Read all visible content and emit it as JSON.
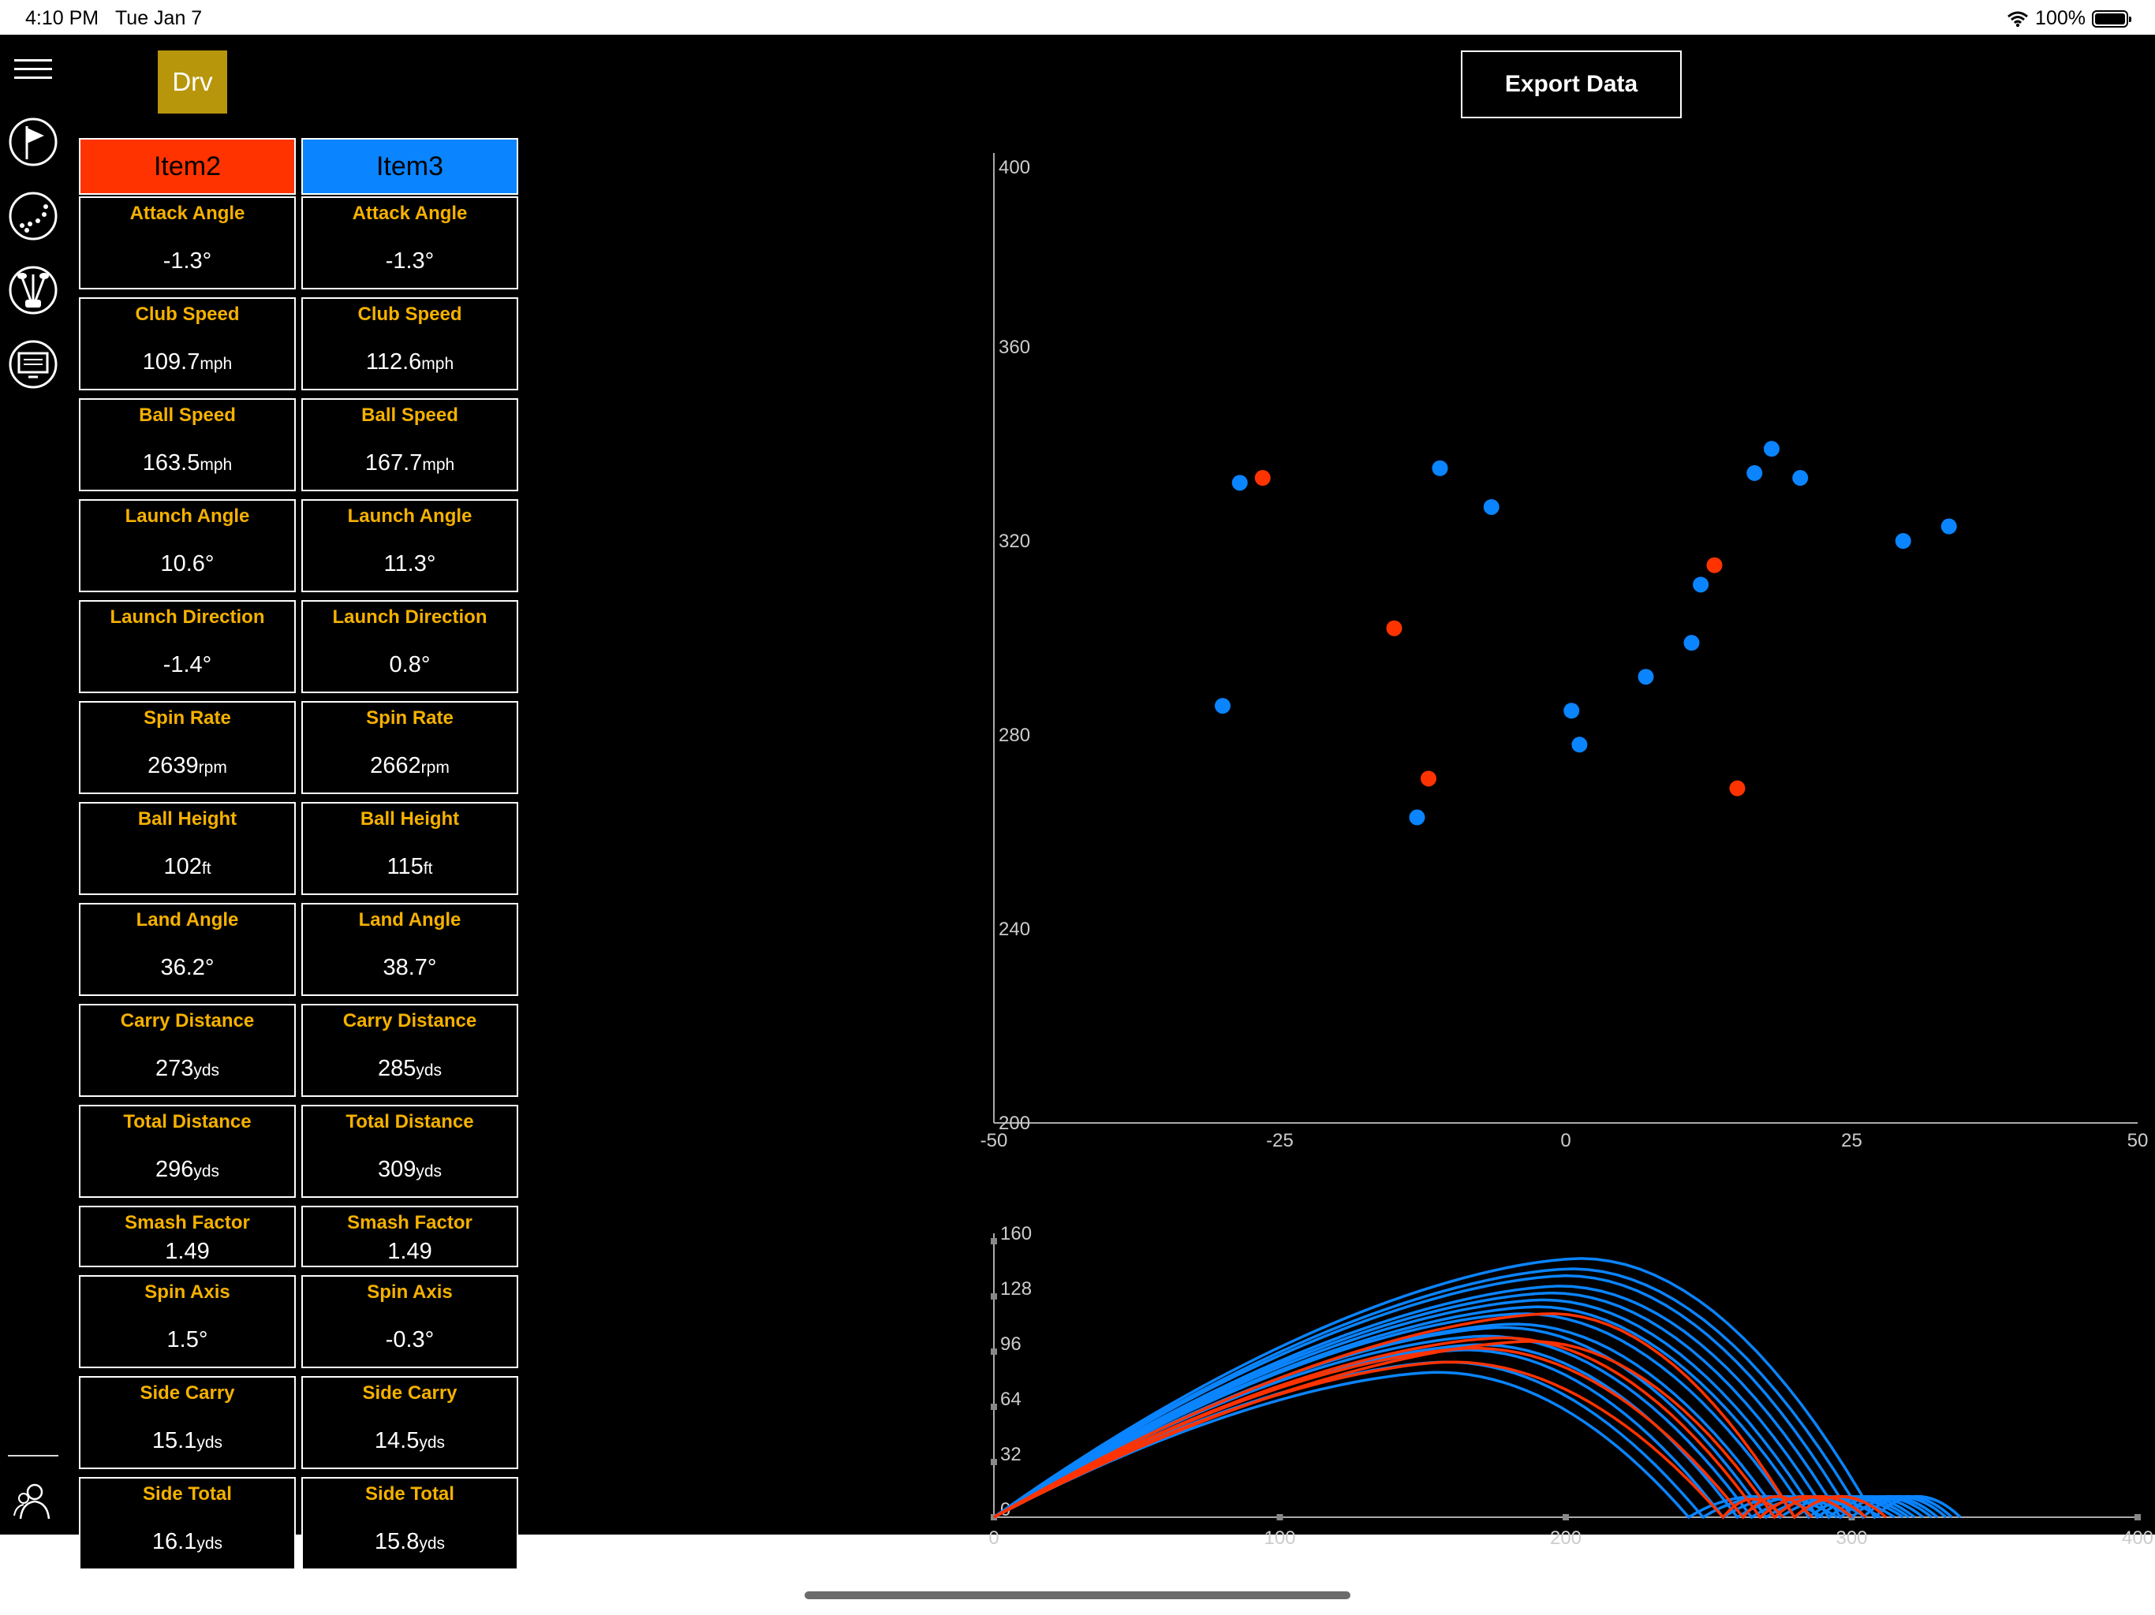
{
  "status": {
    "time": "4:10 PM",
    "date": "Tue Jan 7",
    "battery": "100%"
  },
  "club": {
    "label": "Drv"
  },
  "export": {
    "label": "Export Data"
  },
  "sidebar": {
    "icons": [
      "menu-icon",
      "flag-icon",
      "shots-icon",
      "clubs-icon",
      "monitor-icon",
      "users-icon"
    ]
  },
  "columns": [
    {
      "name": "Item2",
      "color": "#ff3300",
      "rows": [
        {
          "label": "Attack Angle",
          "value": "-1.3°",
          "unit": ""
        },
        {
          "label": "Club Speed",
          "value": "109.7",
          "unit": "mph"
        },
        {
          "label": "Ball Speed",
          "value": "163.5",
          "unit": "mph"
        },
        {
          "label": "Launch Angle",
          "value": "10.6°",
          "unit": ""
        },
        {
          "label": "Launch Direction",
          "value": "-1.4°",
          "unit": ""
        },
        {
          "label": "Spin Rate",
          "value": "2639",
          "unit": "rpm"
        },
        {
          "label": "Ball Height",
          "value": "102",
          "unit": "ft"
        },
        {
          "label": "Land Angle",
          "value": "36.2°",
          "unit": ""
        },
        {
          "label": "Carry Distance",
          "value": "273",
          "unit": "yds"
        },
        {
          "label": "Total Distance",
          "value": "296",
          "unit": "yds"
        },
        {
          "label": "Smash Factor",
          "value": "1.49",
          "unit": ""
        },
        {
          "label": "Spin Axis",
          "value": "1.5°",
          "unit": ""
        },
        {
          "label": "Side Carry",
          "value": "15.1",
          "unit": "yds"
        },
        {
          "label": "Side Total",
          "value": "16.1",
          "unit": "yds"
        }
      ]
    },
    {
      "name": "Item3",
      "color": "#0a84ff",
      "rows": [
        {
          "label": "Attack Angle",
          "value": "-1.3°",
          "unit": ""
        },
        {
          "label": "Club Speed",
          "value": "112.6",
          "unit": "mph"
        },
        {
          "label": "Ball Speed",
          "value": "167.7",
          "unit": "mph"
        },
        {
          "label": "Launch Angle",
          "value": "11.3°",
          "unit": ""
        },
        {
          "label": "Launch Direction",
          "value": "0.8°",
          "unit": ""
        },
        {
          "label": "Spin Rate",
          "value": "2662",
          "unit": "rpm"
        },
        {
          "label": "Ball Height",
          "value": "115",
          "unit": "ft"
        },
        {
          "label": "Land Angle",
          "value": "38.7°",
          "unit": ""
        },
        {
          "label": "Carry Distance",
          "value": "285",
          "unit": "yds"
        },
        {
          "label": "Total Distance",
          "value": "309",
          "unit": "yds"
        },
        {
          "label": "Smash Factor",
          "value": "1.49",
          "unit": ""
        },
        {
          "label": "Spin Axis",
          "value": "-0.3°",
          "unit": ""
        },
        {
          "label": "Side Carry",
          "value": "14.5",
          "unit": "yds"
        },
        {
          "label": "Side Total",
          "value": "15.8",
          "unit": "yds"
        }
      ]
    }
  ],
  "chart_data": [
    {
      "type": "scatter",
      "xlim": [
        -50,
        50
      ],
      "ylim": [
        200,
        400
      ],
      "x_ticks": [
        -50,
        -25,
        0,
        25,
        50
      ],
      "y_ticks": [
        200,
        240,
        280,
        320,
        360,
        400
      ],
      "series": [
        {
          "name": "Item2",
          "color": "#ff3300",
          "points": [
            [
              -26.5,
              333
            ],
            [
              -15,
              302
            ],
            [
              -12,
              271
            ],
            [
              13,
              315
            ],
            [
              15,
              269
            ]
          ]
        },
        {
          "name": "Item3",
          "color": "#0a84ff",
          "points": [
            [
              -28.5,
              332
            ],
            [
              -30,
              286
            ],
            [
              -11,
              335
            ],
            [
              -6.5,
              327
            ],
            [
              -13,
              263
            ],
            [
              0.5,
              285
            ],
            [
              1.2,
              278
            ],
            [
              7,
              292
            ],
            [
              11,
              299
            ],
            [
              11.8,
              311
            ],
            [
              16.5,
              334
            ],
            [
              18,
              339
            ],
            [
              20.5,
              333
            ],
            [
              29.5,
              320
            ],
            [
              33.5,
              323
            ]
          ]
        }
      ]
    },
    {
      "type": "line",
      "xlim": [
        0,
        400
      ],
      "ylim": [
        0,
        160
      ],
      "x_ticks": [
        0,
        100,
        200,
        300,
        400
      ],
      "y_ticks": [
        0,
        32,
        64,
        96,
        128,
        160
      ],
      "series": [
        {
          "name": "Item2",
          "color": "#ff3300",
          "trajectories": [
            [
              255,
              90,
              160,
              276
            ],
            [
              262,
              98,
              168,
              286
            ],
            [
              268,
              104,
              178,
              300
            ],
            [
              273,
              102,
              188,
              305
            ],
            [
              280,
              118,
              195,
              312
            ]
          ]
        },
        {
          "name": "Item3",
          "color": "#0a84ff",
          "trajectories": [
            [
              243,
              84,
              155,
              290
            ],
            [
              248,
              90,
              158,
              295
            ],
            [
              255,
              97,
              165,
              300
            ],
            [
              260,
              100,
              170,
              305
            ],
            [
              265,
              105,
              172,
              310
            ],
            [
              270,
              110,
              178,
              315
            ],
            [
              275,
              112,
              182,
              318
            ],
            [
              280,
              118,
              185,
              320
            ],
            [
              285,
              122,
              190,
              322
            ],
            [
              288,
              126,
              192,
              325
            ],
            [
              292,
              130,
              195,
              328
            ],
            [
              296,
              134,
              198,
              330
            ],
            [
              300,
              140,
              200,
              333
            ],
            [
              304,
              144,
              202,
              335
            ],
            [
              308,
              150,
              205,
              338
            ]
          ]
        }
      ]
    }
  ]
}
